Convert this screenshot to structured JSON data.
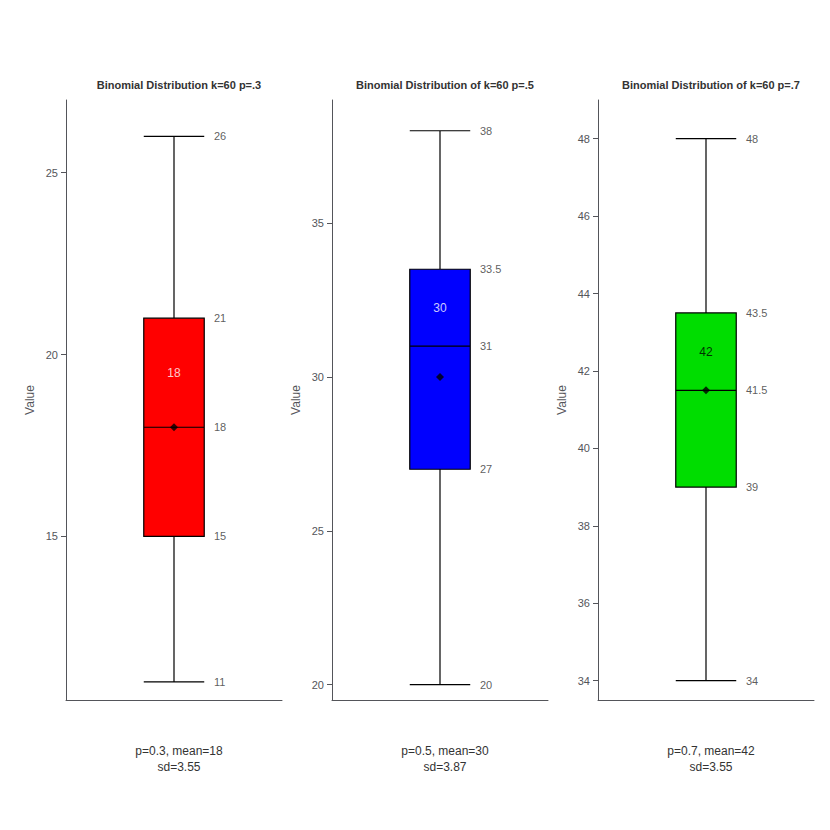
{
  "chart_data": [
    {
      "type": "boxplot",
      "title": "Binomial Distribution k=60 p=.3",
      "color": "#ff0000",
      "whisker_low": 11,
      "q1": 15,
      "median": 18,
      "q3": 21,
      "whisker_high": 26,
      "mean": 18,
      "mean_label": "18",
      "ylabel": "Value",
      "ylim": [
        10.5,
        27
      ],
      "yticks": [
        15,
        20,
        25
      ],
      "caption": "p=0.3, mean=18\nsd=3.55",
      "data_labels": true,
      "grid": false,
      "tick_labels": "y"
    },
    {
      "type": "boxplot",
      "title": "Binomial Distribution of k=60 p=.5",
      "color": "#0000ff",
      "whisker_low": 20,
      "q1": 27,
      "median": 31,
      "q3": 33.5,
      "whisker_high": 38,
      "mean": 30,
      "mean_label": "30",
      "ylabel": "Value",
      "ylim": [
        19.5,
        39
      ],
      "yticks": [
        20,
        25,
        30,
        35
      ],
      "caption": "p=0.5, mean=30\nsd=3.87",
      "data_labels": true,
      "grid": false,
      "tick_labels": "y"
    },
    {
      "type": "boxplot",
      "title": "Binomial Distribution of k=60 p=.7",
      "color": "#00dd00",
      "whisker_low": 34,
      "q1": 39,
      "median": 41.5,
      "q3": 43.5,
      "whisker_high": 48,
      "mean": 41.5,
      "mean_label": "42",
      "ylabel": "Value",
      "ylim": [
        33.5,
        49
      ],
      "yticks": [
        34,
        36,
        38,
        40,
        42,
        44,
        46,
        48
      ],
      "caption": "p=0.7, mean=42\nsd=3.55",
      "data_labels": true,
      "grid": false,
      "tick_labels": "y"
    }
  ]
}
